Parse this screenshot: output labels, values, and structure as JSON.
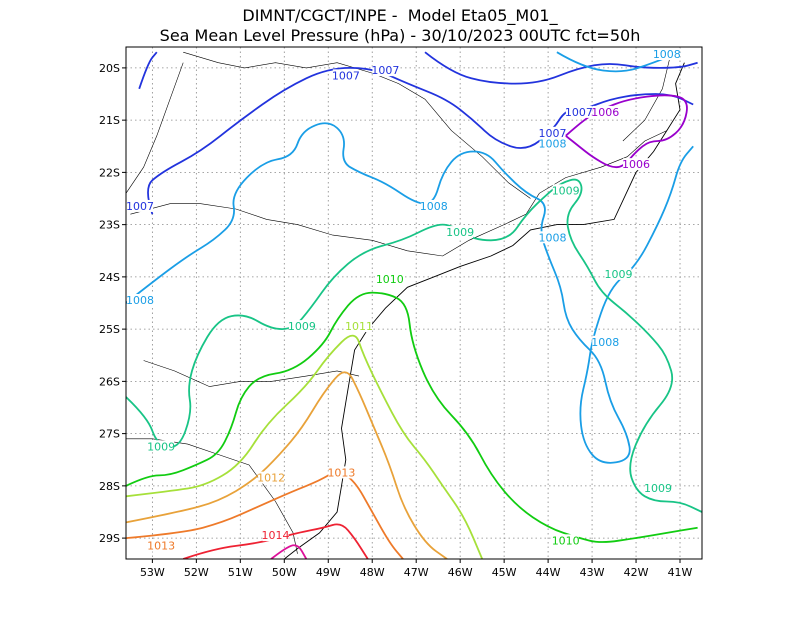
{
  "header": {
    "line1": "DIMNT/CGCT/INPE -  Model Eta05_M01_",
    "line2": "Sea Mean Level Pressure (hPa) - 30/10/2023 00UTC fct=50h"
  },
  "axes": {
    "x_ticks": [
      "53W",
      "52W",
      "51W",
      "50W",
      "49W",
      "48W",
      "47W",
      "46W",
      "45W",
      "44W",
      "43W",
      "42W",
      "41W"
    ],
    "y_ticks": [
      "20S",
      "21S",
      "22S",
      "23S",
      "24S",
      "25S",
      "26S",
      "27S",
      "28S",
      "29S"
    ],
    "lon_range": [
      -53.6,
      -40.5
    ],
    "lat_range": [
      -29.4,
      -19.6
    ]
  },
  "colors": {
    "c1006": "#9900cc",
    "c1007": "#2233dd",
    "c1008": "#1a9ee6",
    "c1009": "#18c486",
    "c1010": "#11cc11",
    "c1011": "#a6e03a",
    "c1012": "#e8a23a",
    "c1013": "#ee7a2a",
    "c1014": "#ee2233",
    "c1015": "#dd1199",
    "coast": "#000000",
    "grid": "#888888"
  },
  "contour_labels": [
    {
      "text": "1007",
      "lon": -48.6,
      "lat": -20.2,
      "color": "c1007"
    },
    {
      "text": "1007",
      "lon": -47.7,
      "lat": -20.1,
      "color": "c1007"
    },
    {
      "text": "1007",
      "lon": -53.3,
      "lat": -22.7,
      "color": "c1007"
    },
    {
      "text": "1007",
      "lon": -43.3,
      "lat": -20.9,
      "color": "c1007"
    },
    {
      "text": "1007",
      "lon": -43.9,
      "lat": -21.3,
      "color": "c1007"
    },
    {
      "text": "1006",
      "lon": -42.7,
      "lat": -20.9,
      "color": "c1006"
    },
    {
      "text": "1006",
      "lon": -42.0,
      "lat": -21.9,
      "color": "c1006"
    },
    {
      "text": "1008",
      "lon": -41.3,
      "lat": -19.6,
      "color": "c1008"
    },
    {
      "text": "1008",
      "lon": -43.9,
      "lat": -21.5,
      "color": "c1008"
    },
    {
      "text": "1008",
      "lon": -46.6,
      "lat": -22.7,
      "color": "c1008"
    },
    {
      "text": "1008",
      "lon": -43.9,
      "lat": -23.3,
      "color": "c1008"
    },
    {
      "text": "1008",
      "lon": -53.4,
      "lat": -24.5,
      "color": "c1008"
    },
    {
      "text": "1008",
      "lon": -42.7,
      "lat": -25.3,
      "color": "c1008"
    },
    {
      "text": "1009",
      "lon": -43.6,
      "lat": -22.4,
      "color": "c1009"
    },
    {
      "text": "1009",
      "lon": -46.0,
      "lat": -23.2,
      "color": "c1009"
    },
    {
      "text": "1009",
      "lon": -42.4,
      "lat": -24.0,
      "color": "c1009"
    },
    {
      "text": "1009",
      "lon": -49.6,
      "lat": -25.0,
      "color": "c1009"
    },
    {
      "text": "1009",
      "lon": -52.8,
      "lat": -27.3,
      "color": "c1009"
    },
    {
      "text": "1009",
      "lon": -41.5,
      "lat": -28.1,
      "color": "c1009"
    },
    {
      "text": "1010",
      "lon": -47.6,
      "lat": -24.1,
      "color": "c1010"
    },
    {
      "text": "1010",
      "lon": -43.6,
      "lat": -29.1,
      "color": "c1010"
    },
    {
      "text": "1011",
      "lon": -48.3,
      "lat": -25.0,
      "color": "c1011"
    },
    {
      "text": "1012",
      "lon": -50.3,
      "lat": -27.9,
      "color": "c1012"
    },
    {
      "text": "1013",
      "lon": -48.7,
      "lat": -27.8,
      "color": "c1013"
    },
    {
      "text": "1013",
      "lon": -52.8,
      "lat": -29.2,
      "color": "c1013"
    },
    {
      "text": "1014",
      "lon": -50.2,
      "lat": -29.0,
      "color": "c1014"
    }
  ],
  "isobars": [
    {
      "level": "1007",
      "color": "c1007",
      "pts": [
        [
          -53.0,
          -22.8
        ],
        [
          -53.2,
          -22.3
        ],
        [
          -52.8,
          -22.0
        ],
        [
          -51.9,
          -21.6
        ],
        [
          -51.0,
          -21.0
        ],
        [
          -50.0,
          -20.4
        ],
        [
          -49.0,
          -20.0
        ],
        [
          -48.0,
          -20.0
        ],
        [
          -47.2,
          -20.3
        ],
        [
          -46.3,
          -20.6
        ],
        [
          -45.7,
          -21.0
        ],
        [
          -45.2,
          -21.4
        ],
        [
          -44.5,
          -21.6
        ],
        [
          -43.9,
          -21.2
        ],
        [
          -43.6,
          -20.8
        ],
        [
          -43.2,
          -20.8
        ],
        [
          -42.6,
          -20.6
        ],
        [
          -41.9,
          -20.5
        ],
        [
          -41.2,
          -20.5
        ],
        [
          -40.7,
          -20.7
        ]
      ]
    },
    {
      "level": "1007b",
      "color": "c1007",
      "pts": [
        [
          -53.3,
          -20.4
        ],
        [
          -53.1,
          -19.9
        ],
        [
          -52.9,
          -19.7
        ]
      ]
    },
    {
      "level": "1007c",
      "color": "c1007",
      "pts": [
        [
          -46.8,
          -19.7
        ],
        [
          -46.2,
          -20.1
        ],
        [
          -45.3,
          -20.3
        ],
        [
          -44.2,
          -20.3
        ],
        [
          -43.3,
          -20.0
        ],
        [
          -42.6,
          -19.9
        ],
        [
          -41.9,
          -20.0
        ],
        [
          -41.0,
          -20.0
        ],
        [
          -40.6,
          -19.9
        ]
      ]
    },
    {
      "level": "1006",
      "color": "c1006",
      "pts": [
        [
          -43.6,
          -21.3
        ],
        [
          -43.2,
          -21.0
        ],
        [
          -42.8,
          -20.8
        ],
        [
          -42.2,
          -20.6
        ],
        [
          -41.3,
          -20.5
        ],
        [
          -40.8,
          -20.6
        ],
        [
          -40.9,
          -21.1
        ],
        [
          -41.3,
          -21.4
        ],
        [
          -41.7,
          -21.4
        ],
        [
          -42.0,
          -21.6
        ],
        [
          -42.3,
          -21.9
        ],
        [
          -42.6,
          -21.9
        ],
        [
          -43.0,
          -21.7
        ],
        [
          -43.3,
          -21.5
        ],
        [
          -43.6,
          -21.3
        ]
      ]
    },
    {
      "level": "1008",
      "color": "c1008",
      "pts": [
        [
          -53.6,
          -24.5
        ],
        [
          -53.0,
          -24.1
        ],
        [
          -52.2,
          -23.6
        ],
        [
          -51.6,
          -23.3
        ],
        [
          -51.1,
          -22.9
        ],
        [
          -51.2,
          -22.4
        ],
        [
          -50.5,
          -21.8
        ],
        [
          -49.8,
          -21.7
        ],
        [
          -49.6,
          -21.2
        ],
        [
          -49.0,
          -21.0
        ],
        [
          -48.6,
          -21.3
        ],
        [
          -48.7,
          -21.8
        ],
        [
          -48.3,
          -22.0
        ],
        [
          -47.7,
          -22.2
        ],
        [
          -47.0,
          -22.6
        ],
        [
          -46.6,
          -22.6
        ],
        [
          -46.4,
          -22.0
        ],
        [
          -46.0,
          -21.6
        ],
        [
          -45.4,
          -21.6
        ],
        [
          -45.0,
          -22.0
        ],
        [
          -44.5,
          -22.4
        ],
        [
          -44.0,
          -22.6
        ],
        [
          -44.2,
          -23.1
        ],
        [
          -44.0,
          -23.6
        ],
        [
          -43.7,
          -24.2
        ],
        [
          -43.6,
          -24.8
        ],
        [
          -43.3,
          -25.2
        ],
        [
          -42.8,
          -25.6
        ],
        [
          -42.6,
          -26.4
        ],
        [
          -42.2,
          -27.0
        ],
        [
          -42.1,
          -27.5
        ],
        [
          -42.8,
          -27.6
        ],
        [
          -43.2,
          -27.2
        ],
        [
          -43.3,
          -26.5
        ],
        [
          -43.1,
          -25.8
        ],
        [
          -43.0,
          -25.2
        ],
        [
          -42.6,
          -24.2
        ],
        [
          -42.0,
          -23.8
        ],
        [
          -41.5,
          -23.0
        ],
        [
          -41.2,
          -22.4
        ],
        [
          -41.0,
          -21.8
        ],
        [
          -40.7,
          -21.5
        ]
      ]
    },
    {
      "level": "1008b",
      "color": "c1008",
      "pts": [
        [
          -43.8,
          -19.7
        ],
        [
          -43.2,
          -20.0
        ],
        [
          -42.3,
          -20.1
        ],
        [
          -41.6,
          -19.9
        ],
        [
          -41.0,
          -19.7
        ]
      ]
    },
    {
      "level": "1009",
      "color": "c1009",
      "pts": [
        [
          -53.6,
          -26.3
        ],
        [
          -53.1,
          -26.7
        ],
        [
          -52.9,
          -27.2
        ],
        [
          -52.4,
          -27.3
        ],
        [
          -52.1,
          -26.6
        ],
        [
          -52.2,
          -26.1
        ],
        [
          -52.0,
          -25.5
        ],
        [
          -51.5,
          -24.8
        ],
        [
          -50.9,
          -24.7
        ],
        [
          -50.3,
          -25.0
        ],
        [
          -49.8,
          -25.0
        ],
        [
          -49.4,
          -24.6
        ],
        [
          -48.9,
          -24.0
        ],
        [
          -48.2,
          -23.5
        ],
        [
          -47.3,
          -23.3
        ],
        [
          -46.6,
          -23.0
        ],
        [
          -46.2,
          -23.0
        ],
        [
          -45.7,
          -23.3
        ],
        [
          -44.9,
          -23.3
        ],
        [
          -44.5,
          -22.8
        ],
        [
          -44.0,
          -22.4
        ],
        [
          -43.7,
          -22.2
        ],
        [
          -43.3,
          -22.1
        ],
        [
          -43.2,
          -22.4
        ],
        [
          -43.6,
          -22.8
        ],
        [
          -43.5,
          -23.3
        ],
        [
          -43.1,
          -23.8
        ],
        [
          -42.8,
          -24.3
        ],
        [
          -42.2,
          -24.7
        ],
        [
          -41.7,
          -25.1
        ],
        [
          -41.3,
          -25.5
        ],
        [
          -41.1,
          -26.1
        ],
        [
          -41.8,
          -26.8
        ],
        [
          -42.2,
          -27.6
        ],
        [
          -42.0,
          -28.1
        ],
        [
          -41.6,
          -28.3
        ],
        [
          -41.0,
          -28.3
        ],
        [
          -40.5,
          -28.5
        ]
      ]
    },
    {
      "level": "1010",
      "color": "c1010",
      "pts": [
        [
          -53.6,
          -28.0
        ],
        [
          -53.1,
          -27.8
        ],
        [
          -52.6,
          -27.8
        ],
        [
          -52.0,
          -27.6
        ],
        [
          -51.5,
          -27.4
        ],
        [
          -51.2,
          -26.9
        ],
        [
          -51.0,
          -26.3
        ],
        [
          -50.6,
          -25.9
        ],
        [
          -49.8,
          -25.8
        ],
        [
          -49.1,
          -25.3
        ],
        [
          -48.8,
          -24.8
        ],
        [
          -48.3,
          -24.3
        ],
        [
          -47.7,
          -24.3
        ],
        [
          -47.2,
          -24.5
        ],
        [
          -47.1,
          -25.3
        ],
        [
          -46.6,
          -26.3
        ],
        [
          -45.8,
          -27.0
        ],
        [
          -45.3,
          -27.8
        ],
        [
          -44.7,
          -28.4
        ],
        [
          -44.0,
          -28.8
        ],
        [
          -43.3,
          -29.0
        ],
        [
          -42.8,
          -29.1
        ],
        [
          -42.0,
          -29.0
        ],
        [
          -41.3,
          -28.9
        ],
        [
          -40.6,
          -28.8
        ]
      ]
    },
    {
      "level": "1011",
      "color": "c1011",
      "pts": [
        [
          -53.6,
          -28.2
        ],
        [
          -52.6,
          -28.1
        ],
        [
          -51.8,
          -28.0
        ],
        [
          -51.0,
          -27.6
        ],
        [
          -50.4,
          -26.8
        ],
        [
          -49.5,
          -26.1
        ],
        [
          -49.0,
          -25.5
        ],
        [
          -48.4,
          -25.0
        ],
        [
          -48.2,
          -25.5
        ],
        [
          -47.8,
          -26.2
        ],
        [
          -47.3,
          -27.0
        ],
        [
          -46.8,
          -27.5
        ],
        [
          -46.4,
          -28.0
        ],
        [
          -45.9,
          -28.6
        ],
        [
          -45.5,
          -29.4
        ]
      ]
    },
    {
      "level": "1012",
      "color": "c1012",
      "pts": [
        [
          -53.6,
          -28.7
        ],
        [
          -52.4,
          -28.5
        ],
        [
          -51.5,
          -28.3
        ],
        [
          -50.7,
          -27.9
        ],
        [
          -50.1,
          -27.4
        ],
        [
          -49.6,
          -26.9
        ],
        [
          -49.1,
          -26.2
        ],
        [
          -48.6,
          -25.7
        ],
        [
          -48.3,
          -26.2
        ],
        [
          -48.0,
          -26.8
        ],
        [
          -47.6,
          -27.6
        ],
        [
          -47.3,
          -28.4
        ],
        [
          -46.8,
          -29.1
        ],
        [
          -46.3,
          -29.4
        ]
      ]
    },
    {
      "level": "1013",
      "color": "c1013",
      "pts": [
        [
          -53.6,
          -29.0
        ],
        [
          -52.3,
          -28.9
        ],
        [
          -51.4,
          -28.7
        ],
        [
          -50.6,
          -28.4
        ],
        [
          -49.8,
          -28.1
        ],
        [
          -49.2,
          -27.9
        ],
        [
          -48.8,
          -27.7
        ],
        [
          -48.4,
          -27.9
        ],
        [
          -48.0,
          -28.5
        ],
        [
          -47.6,
          -29.1
        ],
        [
          -47.3,
          -29.4
        ]
      ]
    },
    {
      "level": "1014",
      "color": "c1014",
      "pts": [
        [
          -52.3,
          -29.4
        ],
        [
          -51.6,
          -29.2
        ],
        [
          -50.6,
          -29.1
        ],
        [
          -49.7,
          -28.9
        ],
        [
          -49.1,
          -28.8
        ],
        [
          -48.7,
          -28.7
        ],
        [
          -48.4,
          -29.0
        ],
        [
          -48.1,
          -29.4
        ]
      ]
    },
    {
      "level": "1015",
      "color": "c1015",
      "pts": [
        [
          -50.3,
          -29.4
        ],
        [
          -50.0,
          -29.2
        ],
        [
          -49.7,
          -29.1
        ],
        [
          -49.5,
          -29.4
        ]
      ]
    }
  ],
  "coast": [
    [
      -40.9,
      -19.9
    ],
    [
      -41.1,
      -20.3
    ],
    [
      -41.0,
      -20.8
    ],
    [
      -41.3,
      -21.2
    ],
    [
      -41.6,
      -21.6
    ],
    [
      -42.0,
      -22.0
    ],
    [
      -42.5,
      -22.9
    ],
    [
      -43.2,
      -23.0
    ],
    [
      -43.8,
      -23.0
    ],
    [
      -44.4,
      -23.1
    ],
    [
      -44.8,
      -23.4
    ],
    [
      -45.3,
      -23.6
    ],
    [
      -46.0,
      -23.8
    ],
    [
      -46.6,
      -24.0
    ],
    [
      -47.2,
      -24.2
    ],
    [
      -47.7,
      -24.6
    ],
    [
      -48.1,
      -25.0
    ],
    [
      -48.4,
      -25.4
    ],
    [
      -48.5,
      -25.9
    ],
    [
      -48.6,
      -26.4
    ],
    [
      -48.7,
      -26.9
    ],
    [
      -48.6,
      -27.5
    ],
    [
      -48.7,
      -28.0
    ],
    [
      -48.8,
      -28.5
    ],
    [
      -49.2,
      -28.9
    ],
    [
      -49.7,
      -29.2
    ],
    [
      -50.0,
      -29.4
    ]
  ],
  "borders": [
    [
      [
        -53.5,
        -22.8
      ],
      [
        -52.6,
        -22.6
      ],
      [
        -51.9,
        -22.6
      ],
      [
        -51.1,
        -22.7
      ],
      [
        -50.4,
        -22.9
      ],
      [
        -49.7,
        -23.0
      ],
      [
        -48.9,
        -23.2
      ],
      [
        -48.0,
        -23.3
      ],
      [
        -47.2,
        -23.5
      ],
      [
        -46.4,
        -23.6
      ],
      [
        -45.8,
        -23.3
      ],
      [
        -45.0,
        -23.0
      ],
      [
        -44.5,
        -22.8
      ],
      [
        -44.2,
        -22.4
      ],
      [
        -43.6,
        -22.1
      ],
      [
        -42.8,
        -21.9
      ],
      [
        -42.2,
        -21.7
      ],
      [
        -41.8,
        -21.4
      ],
      [
        -41.3,
        -21.2
      ]
    ],
    [
      [
        -53.2,
        -25.6
      ],
      [
        -52.5,
        -25.8
      ],
      [
        -51.7,
        -26.1
      ],
      [
        -51.0,
        -26.0
      ],
      [
        -50.3,
        -26.0
      ],
      [
        -49.5,
        -25.9
      ],
      [
        -48.8,
        -25.8
      ],
      [
        -48.3,
        -25.9
      ]
    ],
    [
      [
        -53.6,
        -27.1
      ],
      [
        -53.0,
        -27.1
      ],
      [
        -52.2,
        -27.2
      ],
      [
        -51.5,
        -27.4
      ],
      [
        -50.8,
        -27.6
      ],
      [
        -50.2,
        -28.3
      ],
      [
        -49.8,
        -28.9
      ],
      [
        -49.7,
        -29.3
      ]
    ],
    [
      [
        -52.3,
        -19.7
      ],
      [
        -51.5,
        -19.9
      ],
      [
        -50.9,
        -20.0
      ],
      [
        -50.2,
        -19.9
      ],
      [
        -49.5,
        -20.0
      ],
      [
        -48.8,
        -19.9
      ],
      [
        -48.0,
        -20.1
      ],
      [
        -47.4,
        -20.3
      ],
      [
        -46.8,
        -20.6
      ],
      [
        -46.2,
        -21.2
      ],
      [
        -45.5,
        -21.7
      ],
      [
        -44.9,
        -22.2
      ],
      [
        -44.4,
        -22.5
      ]
    ],
    [
      [
        -53.6,
        -22.4
      ],
      [
        -53.2,
        -21.9
      ],
      [
        -52.9,
        -21.3
      ],
      [
        -52.6,
        -20.6
      ],
      [
        -52.3,
        -19.9
      ]
    ],
    [
      [
        -41.2,
        -19.7
      ],
      [
        -41.4,
        -20.4
      ],
      [
        -41.8,
        -21.0
      ],
      [
        -42.3,
        -21.4
      ]
    ]
  ]
}
